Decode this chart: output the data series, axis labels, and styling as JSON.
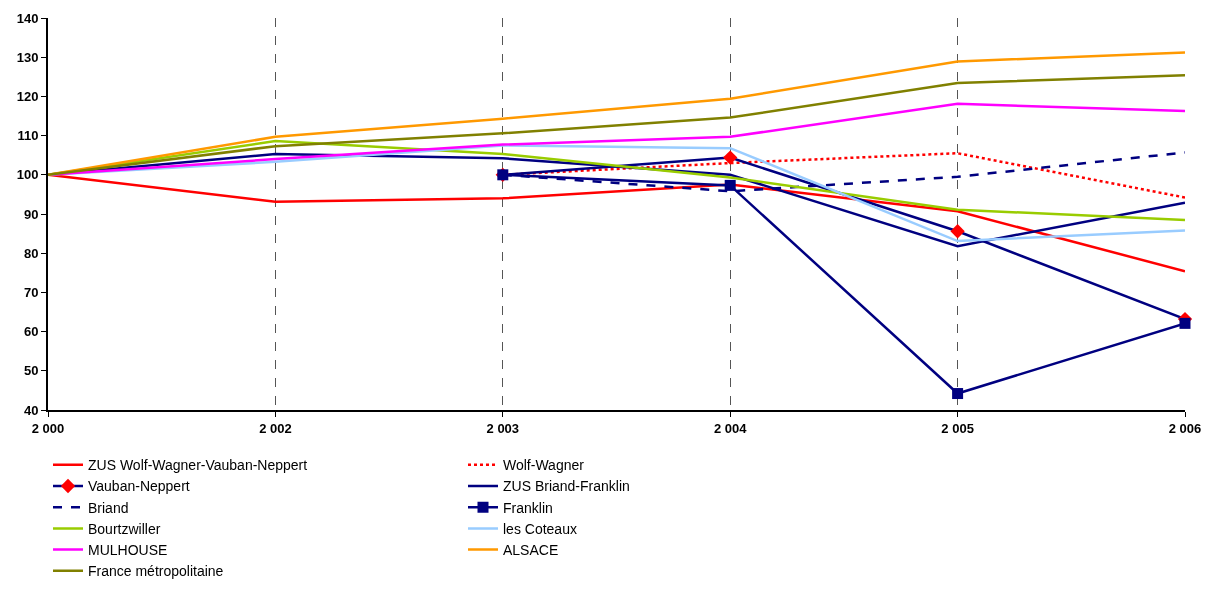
{
  "chart_data": {
    "type": "line",
    "categories": [
      "2 000",
      "2 002",
      "2 003",
      "2 004",
      "2 005",
      "2 006"
    ],
    "ylim": [
      40,
      140
    ],
    "yticks": [
      40,
      50,
      60,
      70,
      80,
      90,
      100,
      110,
      120,
      130,
      140
    ],
    "grid": "x",
    "legend": "bottom",
    "marker": "none",
    "line_style": "solid",
    "series": [
      {
        "name": "ZUS Wolf-Wagner-Vauban-Neppert",
        "color": "#ff0000",
        "values": [
          100,
          93.1,
          94,
          97.5,
          90.7,
          75.4
        ]
      },
      {
        "name": "Wolf-Wagner",
        "color": "#ff0000",
        "line_style": "dotted",
        "values": [
          null,
          null,
          100,
          103,
          105.5,
          94.2
        ]
      },
      {
        "name": "Vauban-Neppert",
        "color": "#000080",
        "marker": "diamond",
        "colors": [
          "#ff0000",
          "#ff0000",
          "#ff0000",
          "#ff0000",
          "#ff0000",
          "#ff0000"
        ],
        "values": [
          null,
          null,
          100,
          104.4,
          85.6,
          63.2
        ]
      },
      {
        "name": "ZUS Briand-Franklin",
        "color": "#000080",
        "values": [
          100,
          105.3,
          104.2,
          100,
          81.8,
          92.9
        ]
      },
      {
        "name": "Briand",
        "color": "#000080",
        "line_style": "dashed",
        "values": [
          null,
          null,
          100,
          95.8,
          99.5,
          105.7
        ]
      },
      {
        "name": "Franklin",
        "color": "#000080",
        "marker": "square",
        "values": [
          null,
          null,
          100,
          97.3,
          44.2,
          62.1
        ]
      },
      {
        "name": "Bourtzwiller",
        "color": "#99cc00",
        "values": [
          100,
          108.6,
          105.3,
          99.3,
          91.1,
          88.5
        ]
      },
      {
        "name": "les Coteaux",
        "color": "#99ccff",
        "values": [
          100,
          103.3,
          107.5,
          106.8,
          83.1,
          85.8
        ]
      },
      {
        "name": "MULHOUSE",
        "color": "#ff00ff",
        "values": [
          100,
          104,
          107.7,
          109.7,
          118.1,
          116.3
        ]
      },
      {
        "name": "ALSACE",
        "color": "#ff9900",
        "values": [
          100,
          109.7,
          114.3,
          119.4,
          128.9,
          131.2
        ]
      },
      {
        "name": "France métropolitaine",
        "color": "#808000",
        "values": [
          100,
          107.3,
          110.6,
          114.6,
          123.4,
          125.4
        ]
      }
    ]
  }
}
